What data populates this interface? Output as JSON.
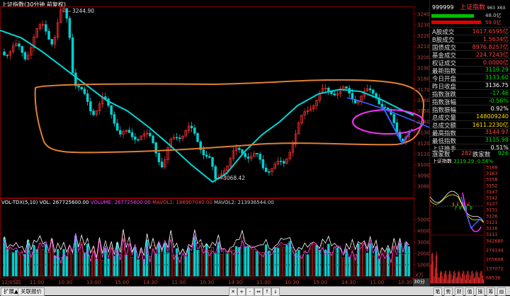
{
  "chart": {
    "title": "上证指数(30分钟 前复权)",
    "high_label": "3244.90",
    "low_label": "3068.42",
    "price_ticks": [
      "3240",
      "3230",
      "3220",
      "3210",
      "3200",
      "3190",
      "3180",
      "3170",
      "3160",
      "3150",
      "3140",
      "3130",
      "3120",
      "3110",
      "3100",
      "3090",
      "3080"
    ],
    "time_labels": [
      "12/05四",
      "11:00",
      "10:30",
      "13:00",
      "15:00",
      "14:30",
      "11:00",
      "10:30",
      "14:30",
      "11:00",
      "10:30",
      "15:00",
      "14:30",
      "11:00",
      "10:30"
    ],
    "period_label": "30分钟",
    "vol_header": {
      "name": "VOL-TDX(5,10)",
      "vol": "VOL: 267725600.00",
      "volume": "VOLUME: 267725600.00",
      "mavol1": "MAVOL1: 186907040.00",
      "mavol2": "MAVOL2: 213936544.00"
    },
    "vol_ticks": [
      "50000",
      "40000",
      "30000",
      "20000",
      "10000"
    ],
    "vol_unit": "X万",
    "colors": {
      "up": "#ff3030",
      "down": "#00d0d0",
      "ma": "#00e0e0",
      "orange": "#e08030",
      "magenta": "#ff30ff",
      "blue": "#4060ff"
    }
  },
  "side": {
    "code": "999999",
    "name": "上证指数",
    "extra": "963",
    "extra_color": "X6X",
    "bar1": "48.0亿",
    "bar2": "59.0亿",
    "rows": [
      {
        "k": "A股成交",
        "v": "1617.6595亿",
        "c": "red"
      },
      {
        "k": "B股成交",
        "v": "1.5634亿",
        "c": "red"
      },
      {
        "k": "国债成交",
        "v": "8976.8257亿",
        "c": "red"
      },
      {
        "k": "基金成交",
        "v": "224.7243亿",
        "c": "red"
      },
      {
        "k": "权证成交",
        "v": "0.0000亿",
        "c": "red"
      },
      {
        "k": "最新指数",
        "v": "3119.29",
        "c": "green"
      },
      {
        "k": "今日开盘",
        "v": "3133.60",
        "c": "green"
      },
      {
        "k": "昨日收盘",
        "v": "3136.75",
        "c": "white"
      },
      {
        "k": "指数涨跌",
        "v": "-17.46",
        "c": "green"
      },
      {
        "k": "指数涨幅",
        "v": "-0.56%",
        "c": "green"
      },
      {
        "k": "指数振幅",
        "v": "0.92%",
        "c": "white"
      },
      {
        "k": "总成交量",
        "v": "148009240",
        "c": "yellow"
      },
      {
        "k": "总成交额",
        "v": "1611.2230亿",
        "c": "yellow"
      },
      {
        "k": "最高指数",
        "v": "3144.97",
        "c": "red"
      },
      {
        "k": "最低指数",
        "v": "3115.98",
        "c": "green"
      },
      {
        "k": "上证换手",
        "v": "0.51%",
        "c": "white"
      }
    ],
    "up_label": "涨家数",
    "up_count": "282",
    "down_label": "跌家数",
    "down_count": "926",
    "mini_title": "上证指数",
    "mini_price": "3119.29",
    "mini_pct": "-0.56%",
    "mini_ticks": [
      "3168",
      "3163",
      "3158",
      "3152",
      "3147",
      "3142",
      "3137",
      "3131",
      "3126",
      "3121",
      "3116",
      "3111"
    ],
    "mini_vol_ticks": [
      "342680",
      "274144",
      "205608",
      "137072",
      "68536"
    ]
  },
  "tabs": [
    "扩展▲",
    "关联报价"
  ],
  "ctrl_glyphs": [
    "✕",
    "+",
    "-",
    "⇔",
    "↑",
    "↓"
  ],
  "bottom_icons": [
    "笔",
    "势",
    "财",
    "值",
    "操",
    "筹",
    "▤"
  ]
}
